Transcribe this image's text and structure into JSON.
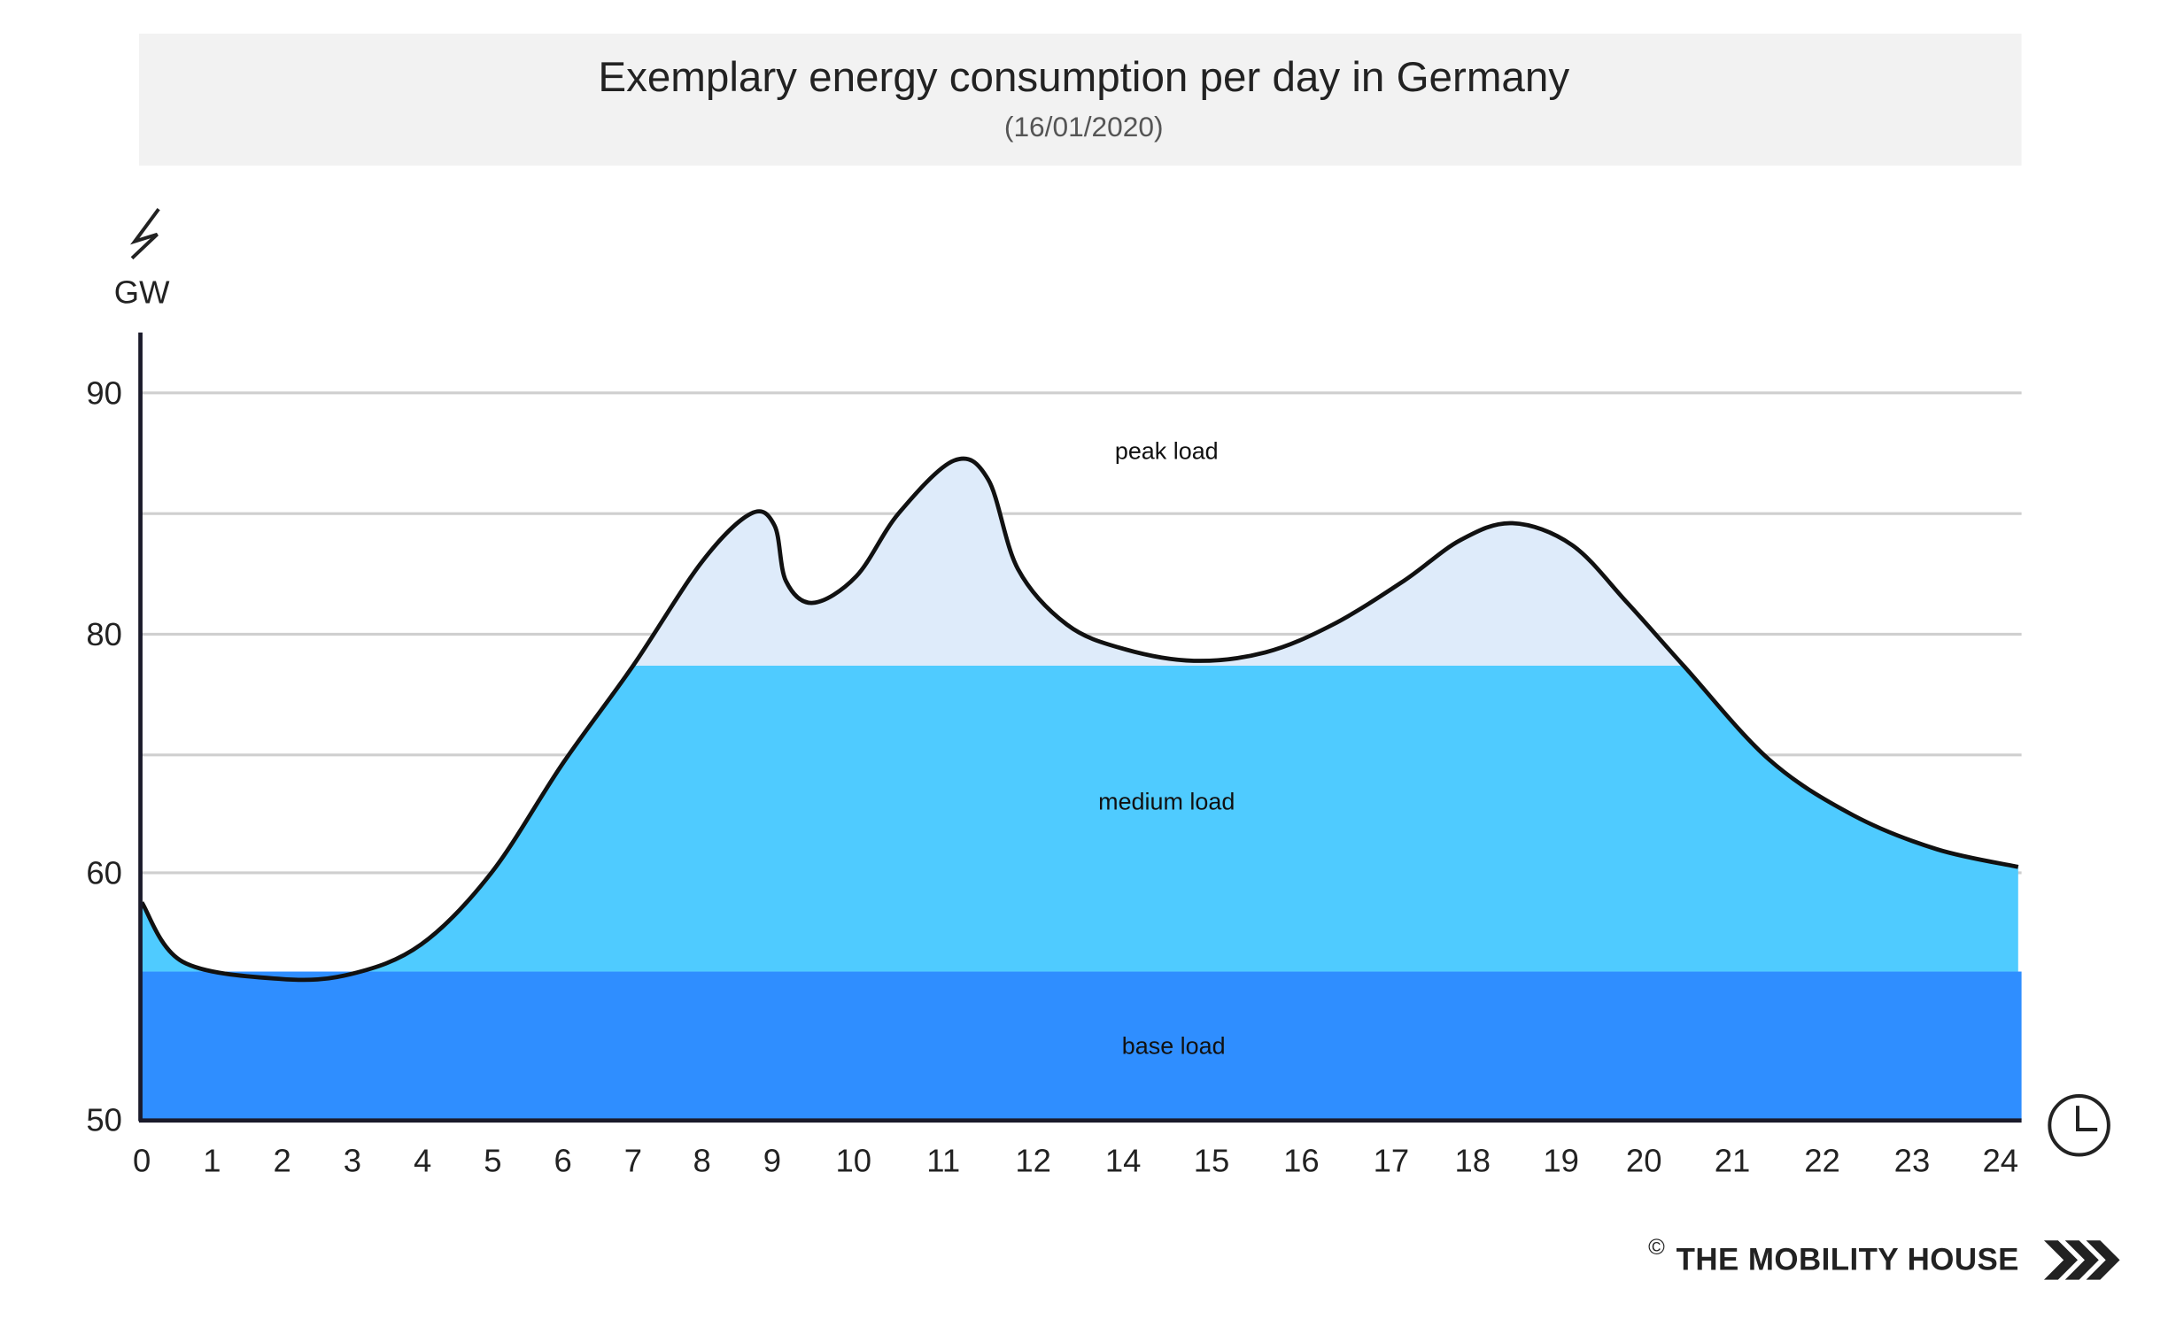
{
  "chart_data": {
    "type": "area",
    "title": "Exemplary energy consumption per day in Germany",
    "subtitle": "(16/01/2020)",
    "ylabel": "GW",
    "y_ticks": [
      "50",
      "60",
      "80",
      "90"
    ],
    "y_tick_values": [
      50,
      60,
      80,
      90
    ],
    "y_unlabeled_gridlines": [
      70,
      85
    ],
    "x_ticks": [
      "0",
      "1",
      "2",
      "3",
      "4",
      "5",
      "6",
      "7",
      "8",
      "9",
      "10",
      "11",
      "12",
      "14",
      "15",
      "16",
      "17",
      "18",
      "19",
      "20",
      "21",
      "22",
      "23",
      "24"
    ],
    "grid": true,
    "bands": [
      {
        "name": "base load",
        "from": 50,
        "to": 56.0,
        "color": "#2f8eff"
      },
      {
        "name": "medium load",
        "from": 56.0,
        "to": 77.4,
        "color": "#4fcbff"
      },
      {
        "name": "peak load",
        "from": 77.4,
        "to": null,
        "color": "#deebfa"
      }
    ],
    "series": [
      {
        "x": [
          0,
          0.58,
          1.98,
          2.98,
          3.98,
          4.98,
          6,
          7,
          8,
          8.7,
          9.03,
          9.17,
          9.5,
          10.03,
          10.5,
          11.12,
          11.5,
          11.83,
          12.75,
          14,
          14.8,
          15.6,
          16.35,
          17.15,
          17.85,
          18.45,
          19.13,
          19.8,
          20.46,
          21.41,
          22.34,
          23.28,
          24.2
        ],
        "y": [
          58.8,
          56.4,
          55.7,
          55.9,
          57.1,
          60,
          69.3,
          77.4,
          83.0,
          85.0,
          84.5,
          82.2,
          81.3,
          82.4,
          85.0,
          87.2,
          86.4,
          82.7,
          80.4,
          78.8,
          77.8,
          78.5,
          80.4,
          82.2,
          83.9,
          84.6,
          83.7,
          81.3,
          77.3,
          69.6,
          64.9,
          62.0,
          60.5
        ]
      }
    ]
  },
  "footer": {
    "copyright": "©",
    "brand": "THE MOBILITY HOUSE"
  },
  "icons": {
    "y_axis": "lightning-bolt-icon",
    "x_axis": "clock-icon",
    "logo": "triple-chevron-icon"
  }
}
